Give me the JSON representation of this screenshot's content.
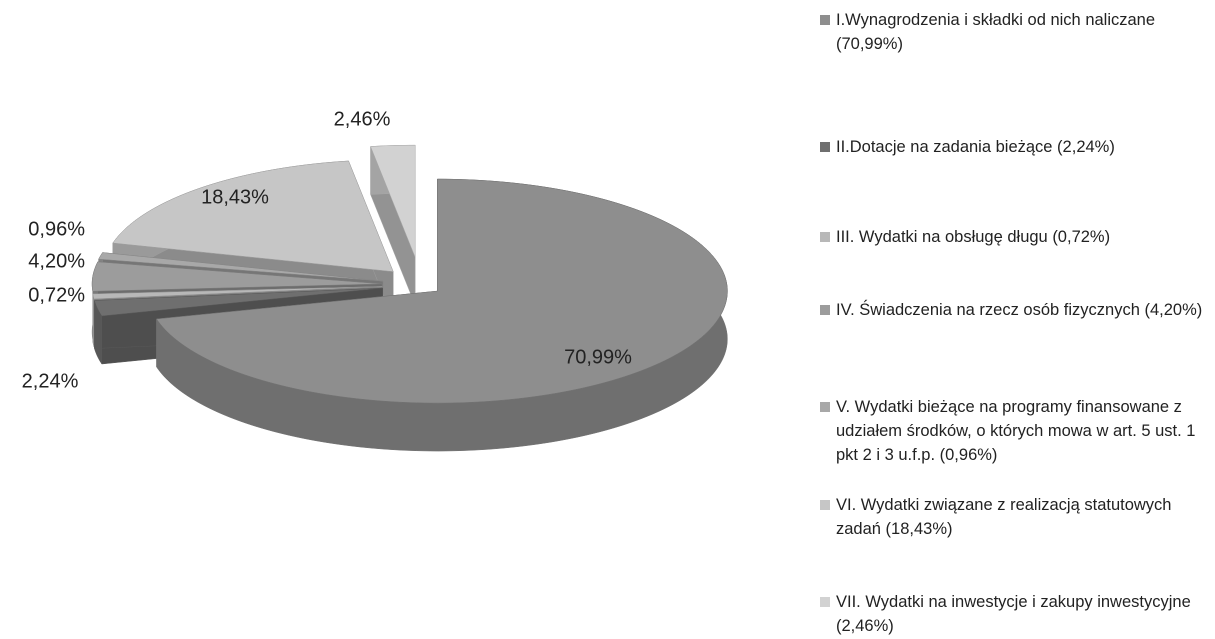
{
  "chart_data": {
    "type": "pie3d",
    "categories": [
      "I.Wynagrodzenia i składki od nich naliczane (70,99%)",
      "II.Dotacje na zadania bieżące (2,24%)",
      "III. Wydatki na obsługę długu (0,72%)",
      "IV. Świadczenia na rzecz osób fizycznych (4,20%)",
      "V. Wydatki bieżące na programy finansowane z udziałem środków, o których mowa w art. 5 ust. 1 pkt 2 i 3 u.f.p. (0,96%)",
      "VI. Wydatki związane z realizacją statutowych zadań (18,43%)",
      "VII. Wydatki na inwestycje i zakupy inwestycyjne (2,46%)"
    ],
    "values": [
      70.99,
      2.24,
      0.72,
      4.2,
      0.96,
      18.43,
      2.46
    ],
    "value_labels": [
      "70,99%",
      "2,24%",
      "0,72%",
      "4,20%",
      "0,96%",
      "18,43%",
      "2,46%"
    ],
    "colors": [
      "#8e8e8e",
      "#6f6f6f",
      "#b8b8b8",
      "#9c9c9c",
      "#a8a8a8",
      "#c6c6c6",
      "#d2d2d2"
    ]
  }
}
